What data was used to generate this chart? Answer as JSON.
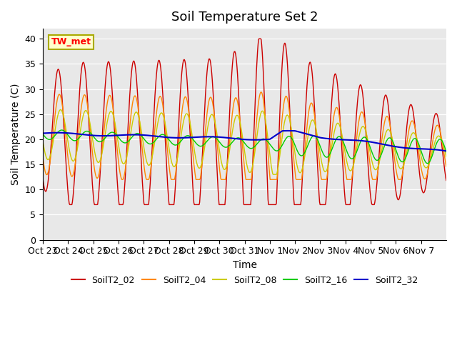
{
  "title": "Soil Temperature Set 2",
  "xlabel": "Time",
  "ylabel": "Soil Temperature (C)",
  "ylim": [
    0,
    42
  ],
  "yticks": [
    0,
    5,
    10,
    15,
    20,
    25,
    30,
    35,
    40
  ],
  "xtick_labels": [
    "Oct 23",
    "Oct 24",
    "Oct 25",
    "Oct 26",
    "Oct 27",
    "Oct 28",
    "Oct 29",
    "Oct 30",
    "Oct 31",
    "Nov 1",
    "Nov 2",
    "Nov 3",
    "Nov 4",
    "Nov 5",
    "Nov 6",
    "Nov 7"
  ],
  "legend_labels": [
    "SoilT2_02",
    "SoilT2_04",
    "SoilT2_08",
    "SoilT2_16",
    "SoilT2_32"
  ],
  "colors": {
    "SoilT2_02": "#cc0000",
    "SoilT2_04": "#ff8800",
    "SoilT2_08": "#cccc00",
    "SoilT2_16": "#00cc00",
    "SoilT2_32": "#0000cc"
  },
  "annotation_text": "TW_met",
  "background_color": "#e8e8e8",
  "title_fontsize": 13,
  "axis_fontsize": 10,
  "tick_fontsize": 9
}
